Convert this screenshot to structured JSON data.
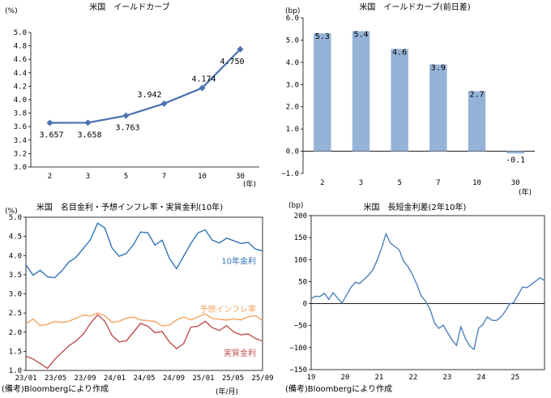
{
  "notes": {
    "left": "(備考)Bloombergにより作成",
    "right": "(備考)Bloombergにより作成"
  },
  "chart_data": [
    {
      "id": "yield-curve",
      "type": "line",
      "title": "米国　イールドカーブ",
      "ylabel": "(%)",
      "xlabel": "(年)",
      "categories": [
        "2",
        "3",
        "5",
        "7",
        "10",
        "30"
      ],
      "values": [
        3.657,
        3.658,
        3.763,
        3.942,
        4.174,
        4.75
      ],
      "data_labels": [
        "3.657",
        "3.658",
        "3.763",
        "3.942",
        "4.174",
        "4.750"
      ],
      "ylim": [
        3.0,
        5.0
      ],
      "yticks": [
        "3.0",
        "3.2",
        "3.4",
        "3.6",
        "3.8",
        "4.0",
        "4.2",
        "4.4",
        "4.6",
        "4.8",
        "5.0"
      ],
      "color": "#4a72b0"
    },
    {
      "id": "yield-change",
      "type": "bar",
      "title": "米国　イールドカーブ(前日差)",
      "ylabel": "(bp)",
      "xlabel": "(年)",
      "categories": [
        "2",
        "3",
        "5",
        "7",
        "10",
        "30"
      ],
      "values": [
        5.3,
        5.4,
        4.6,
        3.9,
        2.7,
        -0.1
      ],
      "data_labels": [
        "5.3",
        "5.4",
        "4.6",
        "3.9",
        "2.7",
        "-0.1"
      ],
      "ylim": [
        -1.0,
        6.0
      ],
      "yticks": [
        "−1.0",
        "0.0",
        "1.0",
        "2.0",
        "3.0",
        "4.0",
        "5.0",
        "6.0"
      ],
      "color": "#95b3d7"
    },
    {
      "id": "rates-breakdown",
      "type": "line",
      "title": "米国　名目金利・予想インフレ率・実質金利(10年)",
      "ylabel": "(%)",
      "xlabel": "(年/月)",
      "ylim": [
        1.0,
        5.0
      ],
      "yticks": [
        "1.0",
        "1.5",
        "2.0",
        "2.5",
        "3.0",
        "3.5",
        "4.0",
        "4.5",
        "5.0"
      ],
      "xticks": [
        "23/01",
        "23/05",
        "23/09",
        "24/01",
        "24/05",
        "24/09",
        "25/01",
        "25/05",
        "25/09"
      ],
      "x": [
        0,
        1,
        2,
        3,
        4,
        5,
        6,
        7,
        8,
        9,
        10,
        11,
        12,
        13,
        14,
        15,
        16,
        17,
        18,
        19,
        20,
        21,
        22,
        23,
        24,
        25,
        26,
        27,
        28,
        29,
        30,
        31,
        32,
        33
      ],
      "series": [
        {
          "name": "10年金利",
          "color": "#2e75b6",
          "values": [
            3.8,
            3.5,
            3.6,
            3.4,
            3.45,
            3.6,
            3.8,
            4.0,
            4.2,
            4.4,
            4.8,
            4.75,
            4.2,
            3.95,
            4.1,
            4.3,
            4.6,
            4.55,
            4.3,
            4.4,
            3.9,
            3.7,
            4.0,
            4.3,
            4.55,
            4.7,
            4.4,
            4.3,
            4.5,
            4.4,
            4.3,
            4.3,
            4.2,
            4.12
          ]
        },
        {
          "name": "予想インフレ率",
          "color": "#f4a460",
          "values": [
            2.2,
            2.3,
            2.2,
            2.2,
            2.25,
            2.3,
            2.3,
            2.35,
            2.4,
            2.45,
            2.5,
            2.4,
            2.3,
            2.3,
            2.35,
            2.35,
            2.35,
            2.3,
            2.25,
            2.2,
            2.2,
            2.3,
            2.35,
            2.35,
            2.4,
            2.45,
            2.4,
            2.35,
            2.3,
            2.3,
            2.35,
            2.4,
            2.4,
            2.35
          ]
        },
        {
          "name": "実質金利",
          "color": "#c0504d",
          "values": [
            1.4,
            1.3,
            1.15,
            1.1,
            1.3,
            1.45,
            1.6,
            1.8,
            1.95,
            2.2,
            2.5,
            2.3,
            1.9,
            1.7,
            1.8,
            2.0,
            2.2,
            2.2,
            2.0,
            2.0,
            1.7,
            1.6,
            1.7,
            2.1,
            2.2,
            2.3,
            2.1,
            2.0,
            2.2,
            2.0,
            1.9,
            2.0,
            1.85,
            1.75
          ]
        }
      ]
    },
    {
      "id": "spread",
      "type": "line",
      "title": "米国　長短金利差(2年10年)",
      "ylabel": "(bp)",
      "xlabel": "",
      "ylim": [
        -150,
        200
      ],
      "yticks": [
        "−150",
        "−100",
        "−50",
        "0",
        "50",
        "100",
        "150",
        "200"
      ],
      "xticks": [
        "19",
        "20",
        "21",
        "22",
        "23",
        "24",
        "25"
      ],
      "x": [
        0,
        1,
        2,
        3,
        4,
        5,
        6,
        7,
        8,
        9,
        10,
        11,
        12,
        13,
        14,
        15,
        16,
        17,
        18,
        19,
        20,
        21,
        22,
        23,
        24,
        25,
        26,
        27,
        28,
        29,
        30,
        31,
        32,
        33,
        34,
        35,
        36,
        37,
        38,
        39,
        40,
        41,
        42,
        43,
        44,
        45,
        46,
        47,
        48,
        49,
        50,
        51,
        52,
        53
      ],
      "series": [
        {
          "name": "長短金利差",
          "color": "#4f81bd",
          "values": [
            15,
            18,
            15,
            20,
            12,
            25,
            10,
            5,
            20,
            35,
            45,
            48,
            55,
            62,
            80,
            100,
            125,
            155,
            140,
            130,
            120,
            100,
            85,
            65,
            40,
            20,
            5,
            -15,
            -40,
            -55,
            -50,
            -70,
            -80,
            -95,
            -55,
            -75,
            -95,
            -105,
            -60,
            -45,
            -30,
            -40,
            -35,
            -30,
            -20,
            -5,
            5,
            20,
            35,
            40,
            45,
            50,
            55,
            55
          ]
        }
      ]
    }
  ]
}
